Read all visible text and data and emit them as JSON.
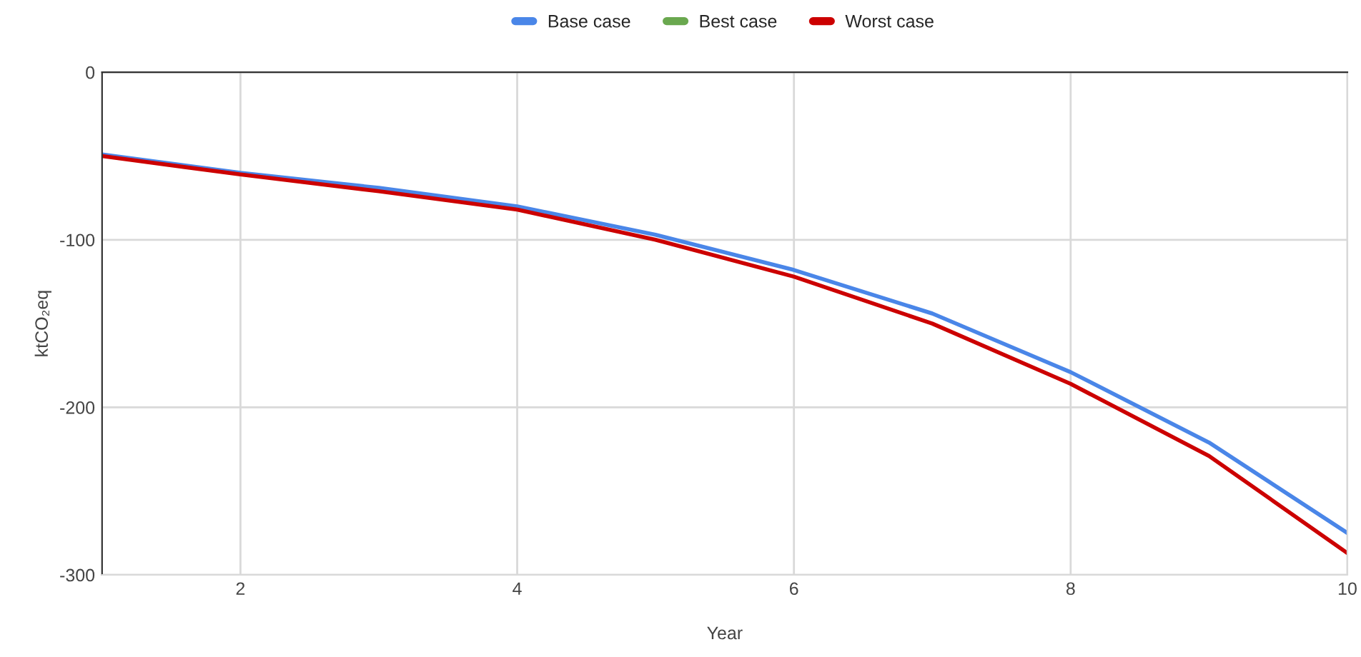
{
  "chart_data": {
    "type": "line",
    "xlabel": "Year",
    "ylabel": "ktCO₂eq",
    "x": [
      1,
      2,
      3,
      4,
      5,
      6,
      7,
      8,
      9,
      10
    ],
    "series": [
      {
        "name": "Base case",
        "color": "#4a86e8",
        "values": [
          -49,
          -60,
          -69,
          -80,
          -97,
          -118,
          -144,
          -179,
          -221,
          -275
        ]
      },
      {
        "name": "Best case",
        "color": "#6aa84f",
        "values": [
          null,
          null,
          null,
          null,
          null,
          null,
          null,
          null,
          null,
          null
        ]
      },
      {
        "name": "Worst case",
        "color": "#cc0000",
        "values": [
          -50,
          -61,
          -71,
          -82,
          -100,
          -122,
          -150,
          -186,
          -229,
          -287
        ]
      }
    ],
    "xlim": [
      1,
      10
    ],
    "ylim": [
      -300,
      0
    ],
    "xticks": [
      2,
      4,
      6,
      8,
      10
    ],
    "yticks": [
      -300,
      -200,
      -100,
      0
    ],
    "grid": true,
    "legend": "top",
    "marker": "none",
    "line_style": "solid"
  }
}
